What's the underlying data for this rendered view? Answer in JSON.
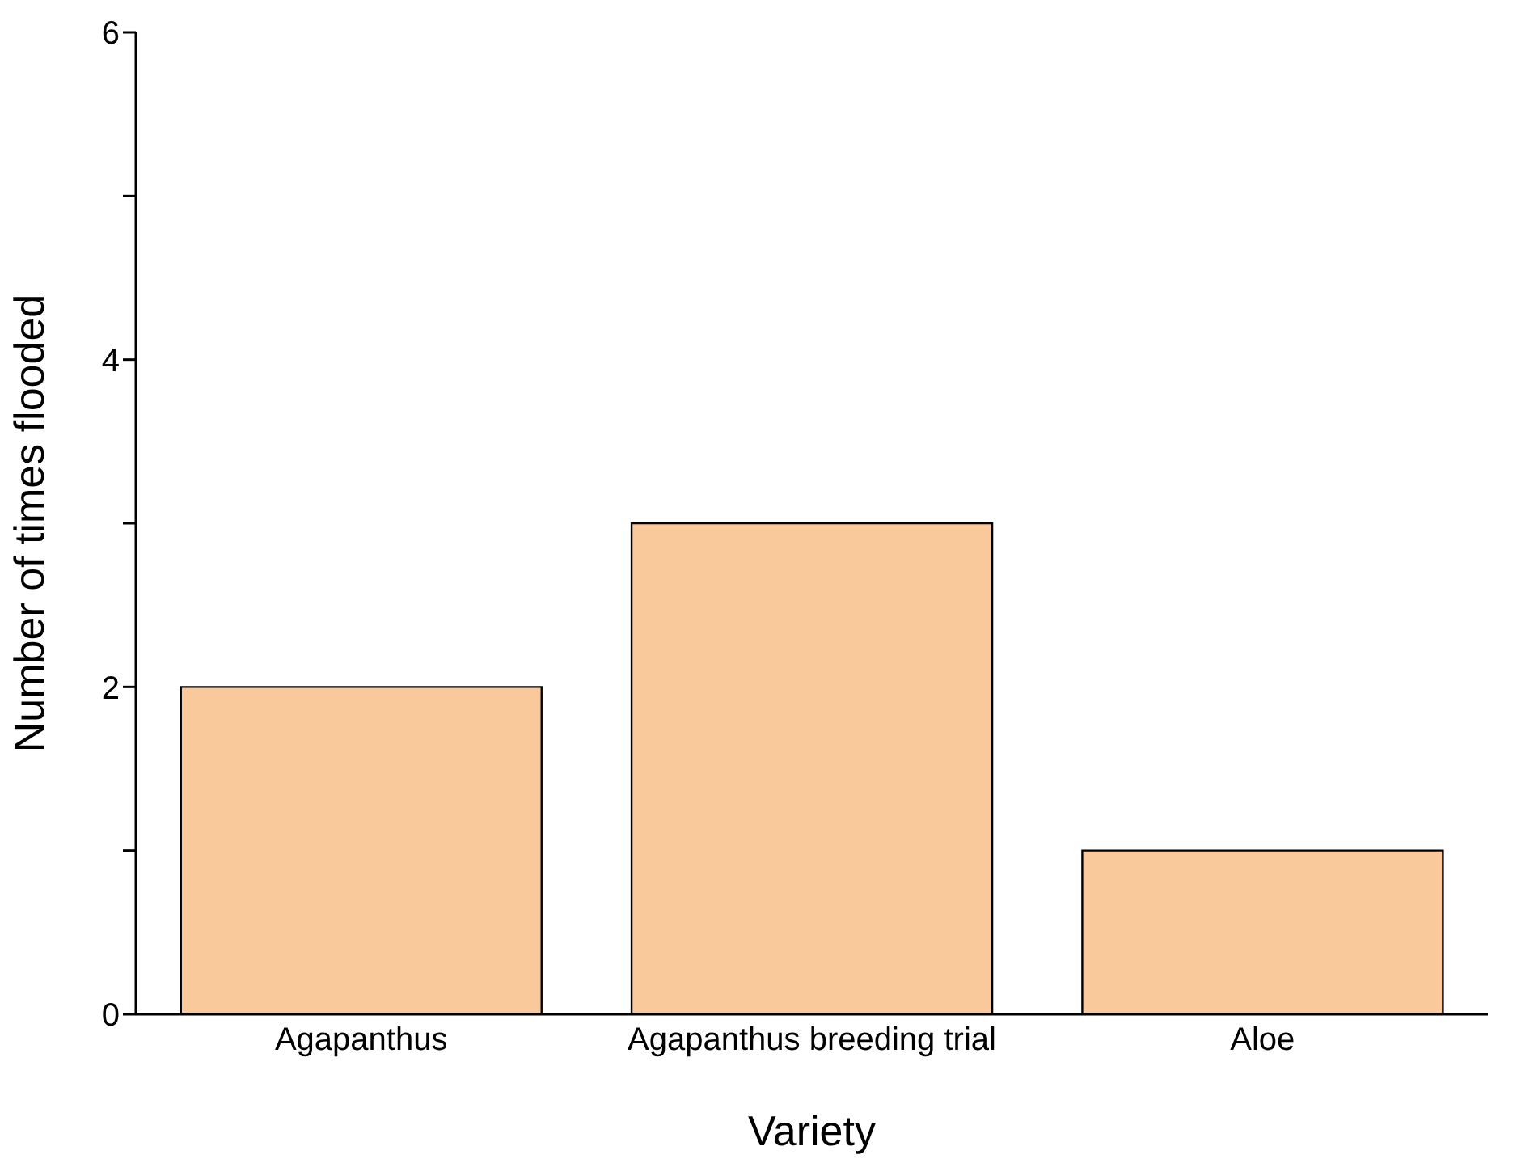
{
  "chart_data": {
    "type": "bar",
    "xlabel": "Variety",
    "ylabel": "Number of times flooded",
    "categories": [
      "Agapanthus",
      "Agapanthus breeding trial",
      "Aloe"
    ],
    "values": [
      2,
      3,
      1
    ],
    "color": "#f9c89b",
    "ylim": [
      0,
      6
    ],
    "yticks": [
      0,
      {
        "value": 1,
        "label": null
      },
      2,
      {
        "value": 3,
        "label": null
      },
      4,
      {
        "value": 5,
        "label": null
      },
      6
    ],
    "grid": false,
    "legend": false
  }
}
